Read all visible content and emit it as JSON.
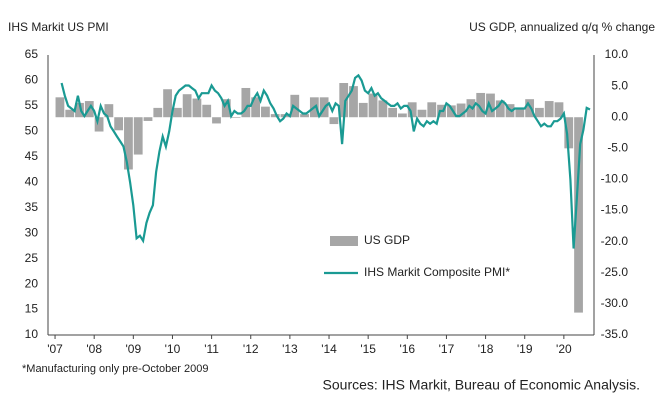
{
  "chart_data": {
    "type": "bar-line",
    "title": "IHS Markit US PMI",
    "y2_title": "US GDP, annualized q/q % change",
    "footnote": "*Manufacturing only pre-October 2009",
    "source": "Sources: IHS Markit, Bureau of Economic Analysis.",
    "xlim": [
      2006.82,
      2020.77
    ],
    "xticks": [
      {
        "value": 2007,
        "label": "'07"
      },
      {
        "value": 2008,
        "label": "'08"
      },
      {
        "value": 2009,
        "label": "'09"
      },
      {
        "value": 2010,
        "label": "'10"
      },
      {
        "value": 2011,
        "label": "'11"
      },
      {
        "value": 2012,
        "label": "'12"
      },
      {
        "value": 2013,
        "label": "'13"
      },
      {
        "value": 2014,
        "label": "'14"
      },
      {
        "value": 2015,
        "label": "'15"
      },
      {
        "value": 2016,
        "label": "'16"
      },
      {
        "value": 2017,
        "label": "'17"
      },
      {
        "value": 2018,
        "label": "'18"
      },
      {
        "value": 2019,
        "label": "'19"
      },
      {
        "value": 2020,
        "label": "'20"
      }
    ],
    "ylim": [
      10,
      65
    ],
    "yticks": [
      10,
      15,
      20,
      25,
      30,
      35,
      40,
      45,
      50,
      55,
      60,
      65
    ],
    "y2lim": [
      -35,
      10
    ],
    "y2ticks": [
      {
        "value": 10,
        "label": "10.0"
      },
      {
        "value": 5,
        "label": "5.0"
      },
      {
        "value": 0,
        "label": "0.0"
      },
      {
        "value": -5,
        "label": "-5.0"
      },
      {
        "value": -10,
        "label": "-10.0"
      },
      {
        "value": -15,
        "label": "-15.0"
      },
      {
        "value": -20,
        "label": "-20.0"
      },
      {
        "value": -25,
        "label": "-25.0"
      },
      {
        "value": -30,
        "label": "-30.0"
      },
      {
        "value": -35,
        "label": "-35.0"
      }
    ],
    "legend": "center",
    "series": [
      {
        "name": "US GDP",
        "type": "bar",
        "axis": "y2",
        "color": "#a6a6a6",
        "x": [
          2007.125,
          2007.375,
          2007.625,
          2007.875,
          2008.125,
          2008.375,
          2008.625,
          2008.875,
          2009.125,
          2009.375,
          2009.625,
          2009.875,
          2010.125,
          2010.375,
          2010.625,
          2010.875,
          2011.125,
          2011.375,
          2011.625,
          2011.875,
          2012.125,
          2012.375,
          2012.625,
          2012.875,
          2013.125,
          2013.375,
          2013.625,
          2013.875,
          2014.125,
          2014.375,
          2014.625,
          2014.875,
          2015.125,
          2015.375,
          2015.625,
          2015.875,
          2016.125,
          2016.375,
          2016.625,
          2016.875,
          2017.125,
          2017.375,
          2017.625,
          2017.875,
          2018.125,
          2018.375,
          2018.625,
          2018.875,
          2019.125,
          2019.375,
          2019.625,
          2019.875,
          2020.125,
          2020.375
        ],
        "values": [
          3.2,
          1.2,
          2.3,
          2.6,
          -2.3,
          2.1,
          -2.1,
          -8.4,
          -6.0,
          -0.6,
          1.5,
          4.5,
          1.5,
          3.7,
          3.0,
          2.0,
          -1.0,
          2.9,
          -0.1,
          4.7,
          3.2,
          1.7,
          0.5,
          0.5,
          3.6,
          0.5,
          3.2,
          3.2,
          -1.1,
          5.5,
          5.0,
          2.3,
          3.8,
          2.7,
          1.5,
          0.6,
          2.4,
          1.2,
          2.4,
          2.0,
          1.9,
          2.2,
          2.9,
          3.9,
          3.8,
          2.7,
          2.1,
          1.3,
          2.9,
          1.5,
          2.6,
          2.4,
          -5.0,
          -31.4
        ]
      },
      {
        "name": "IHS Markit Composite PMI*",
        "type": "line",
        "axis": "y",
        "color": "#1a9a93",
        "x": [
          2007.167,
          2007.25,
          2007.333,
          2007.417,
          2007.5,
          2007.583,
          2007.667,
          2007.75,
          2007.833,
          2007.917,
          2008,
          2008.083,
          2008.167,
          2008.25,
          2008.333,
          2008.417,
          2008.5,
          2008.583,
          2008.667,
          2008.75,
          2008.833,
          2008.917,
          2009,
          2009.083,
          2009.167,
          2009.25,
          2009.333,
          2009.417,
          2009.5,
          2009.583,
          2009.667,
          2009.75,
          2009.833,
          2009.917,
          2010,
          2010.083,
          2010.167,
          2010.25,
          2010.333,
          2010.417,
          2010.5,
          2010.583,
          2010.667,
          2010.75,
          2010.833,
          2010.917,
          2011,
          2011.083,
          2011.167,
          2011.25,
          2011.333,
          2011.417,
          2011.5,
          2011.583,
          2011.667,
          2011.75,
          2011.833,
          2011.917,
          2012,
          2012.083,
          2012.167,
          2012.25,
          2012.333,
          2012.417,
          2012.5,
          2012.583,
          2012.667,
          2012.75,
          2012.833,
          2012.917,
          2013,
          2013.083,
          2013.167,
          2013.25,
          2013.333,
          2013.417,
          2013.5,
          2013.583,
          2013.667,
          2013.75,
          2013.833,
          2013.917,
          2014,
          2014.083,
          2014.167,
          2014.25,
          2014.333,
          2014.417,
          2014.5,
          2014.583,
          2014.667,
          2014.75,
          2014.833,
          2014.917,
          2015,
          2015.083,
          2015.167,
          2015.25,
          2015.333,
          2015.417,
          2015.5,
          2015.583,
          2015.667,
          2015.75,
          2015.833,
          2015.917,
          2016,
          2016.083,
          2016.167,
          2016.25,
          2016.333,
          2016.417,
          2016.5,
          2016.583,
          2016.667,
          2016.75,
          2016.833,
          2016.917,
          2017,
          2017.083,
          2017.167,
          2017.25,
          2017.333,
          2017.417,
          2017.5,
          2017.583,
          2017.667,
          2017.75,
          2017.833,
          2017.917,
          2018,
          2018.083,
          2018.167,
          2018.25,
          2018.333,
          2018.417,
          2018.5,
          2018.583,
          2018.667,
          2018.75,
          2018.833,
          2018.917,
          2019,
          2019.083,
          2019.167,
          2019.25,
          2019.333,
          2019.417,
          2019.5,
          2019.583,
          2019.667,
          2019.75,
          2019.833,
          2019.917,
          2020,
          2020.083,
          2020.167,
          2020.25,
          2020.333,
          2020.417,
          2020.5,
          2020.583,
          2020.667
        ],
        "values": [
          59.5,
          57,
          55,
          54.5,
          54,
          57,
          54,
          53,
          54,
          55,
          54,
          52,
          55,
          53.5,
          53,
          51,
          50,
          49,
          48,
          47,
          44,
          40,
          35.5,
          29,
          29.5,
          28.5,
          32,
          34,
          35.5,
          42,
          46,
          49,
          47,
          50,
          54,
          57,
          58,
          58.5,
          59,
          59,
          58.5,
          58,
          56.5,
          57.5,
          57.5,
          57.5,
          59,
          58,
          57.5,
          56.5,
          55,
          56,
          53,
          54,
          53.5,
          53.5,
          54,
          55,
          55,
          56.5,
          57.5,
          56,
          58,
          57,
          55.5,
          54.5,
          53,
          52,
          52.5,
          53.5,
          53,
          55,
          54.5,
          54,
          53.5,
          53.5,
          54,
          54.5,
          55,
          53,
          54,
          55,
          55.5,
          54,
          55.5,
          55,
          47.5,
          56,
          57,
          58,
          60.5,
          61,
          60,
          58,
          57.5,
          58.5,
          57,
          57.5,
          56.5,
          56,
          55.5,
          55,
          55,
          55.5,
          54.5,
          55,
          55,
          54,
          50,
          52.5,
          51.5,
          51,
          52,
          51.5,
          52,
          51.5,
          54,
          54,
          55.5,
          55,
          54,
          53,
          53,
          53.5,
          54,
          55,
          54.5,
          55.5,
          55,
          54,
          53.5,
          55.5,
          54,
          54.5,
          55,
          56,
          55.5,
          54.5,
          54,
          54.5,
          54.5,
          54.5,
          54.5,
          55.5,
          54.5,
          53,
          52,
          51,
          51.5,
          51,
          51,
          52,
          52,
          52.5,
          53.5,
          49.5,
          40.5,
          27,
          37,
          47.5,
          50.3,
          54.6,
          54.3
        ]
      }
    ]
  }
}
